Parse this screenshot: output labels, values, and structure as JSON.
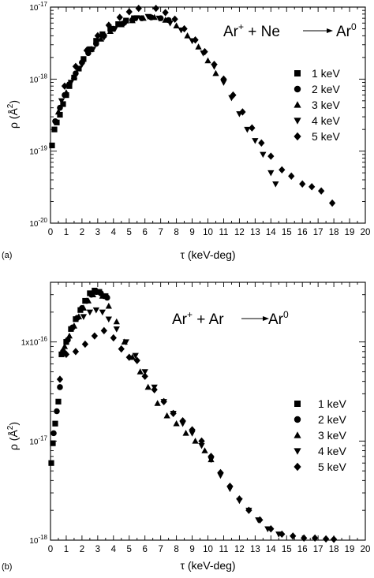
{
  "chart_data": [
    {
      "type": "scatter",
      "panel_label": "(a)",
      "reaction": {
        "left": "Ar",
        "sup1": "+",
        "mid": " + Ne",
        "product": "Ar",
        "sup2": "0"
      },
      "xlabel": "τ (keV-deg)",
      "ylabel": "ρ (Å",
      "ylabel_sup": "2",
      "ylabel_end": ")",
      "yscale": "log",
      "xlim": [
        0,
        20
      ],
      "ylim": [
        1e-20,
        1e-17
      ],
      "x_ticks": [
        "0",
        "1",
        "2",
        "3",
        "4",
        "5",
        "6",
        "7",
        "8",
        "9",
        "10",
        "11",
        "12",
        "13",
        "14",
        "15",
        "16",
        "17",
        "18",
        "19",
        "20"
      ],
      "y_ticks": [
        {
          "value": 1e-17,
          "mant": "10",
          "exp": "-17"
        },
        {
          "value": 1e-18,
          "mant": "10",
          "exp": "-18"
        },
        {
          "value": 1e-19,
          "mant": "10",
          "exp": "-19"
        },
        {
          "value": 1e-20,
          "mant": "10",
          "exp": "-20"
        }
      ],
      "legend_position": "right",
      "series": [
        {
          "name": "1 keV",
          "marker": "square",
          "points": [
            [
              0.1,
              1.2e-19
            ],
            [
              0.25,
              2e-19
            ],
            [
              0.4,
              2.5e-19
            ],
            [
              0.6,
              3.2e-19
            ],
            [
              0.8,
              4.5e-19
            ],
            [
              1.0,
              6e-19
            ],
            [
              1.2,
              8e-19
            ],
            [
              1.5,
              1.05e-18
            ],
            [
              1.8,
              1.4e-18
            ],
            [
              2.1,
              1.9e-18
            ],
            [
              2.5,
              2.6e-18
            ],
            [
              2.9,
              3.4e-18
            ],
            [
              3.3,
              4.2e-18
            ],
            [
              3.8,
              5e-18
            ],
            [
              4.3,
              5.8e-18
            ],
            [
              4.8,
              6.5e-18
            ],
            [
              5.3,
              7e-18
            ]
          ]
        },
        {
          "name": "2 keV",
          "marker": "circle",
          "points": [
            [
              0.3,
              2.6e-19
            ],
            [
              0.6,
              4e-19
            ],
            [
              0.9,
              6e-19
            ],
            [
              1.2,
              8.5e-19
            ],
            [
              1.6,
              1.2e-18
            ],
            [
              2.0,
              1.7e-18
            ],
            [
              2.4,
              2.3e-18
            ],
            [
              2.9,
              3.1e-18
            ],
            [
              3.4,
              4e-18
            ],
            [
              4.0,
              5e-18
            ],
            [
              4.6,
              5.9e-18
            ],
            [
              5.2,
              6.6e-18
            ],
            [
              5.8,
              7e-18
            ],
            [
              6.4,
              7.2e-18
            ],
            [
              7.0,
              7e-18
            ],
            [
              7.5,
              6.6e-18
            ]
          ]
        },
        {
          "name": "3 keV",
          "marker": "triangle",
          "points": [
            [
              0.5,
              3.5e-19
            ],
            [
              1.0,
              6.5e-19
            ],
            [
              1.5,
              1.1e-18
            ],
            [
              2.0,
              1.8e-18
            ],
            [
              2.6,
              2.6e-18
            ],
            [
              3.2,
              3.6e-18
            ],
            [
              3.8,
              4.6e-18
            ],
            [
              4.5,
              5.7e-18
            ],
            [
              5.2,
              6.5e-18
            ],
            [
              5.9,
              7e-18
            ],
            [
              6.6,
              7.2e-18
            ],
            [
              7.3,
              6.6e-18
            ],
            [
              8.0,
              5.5e-18
            ],
            [
              8.7,
              4e-18
            ],
            [
              9.4,
              2.8e-18
            ],
            [
              10.0,
              1.8e-18
            ],
            [
              10.5,
              1.2e-18
            ]
          ]
        },
        {
          "name": "4 keV",
          "marker": "triangle-down",
          "points": [
            [
              0.7,
              5e-19
            ],
            [
              1.3,
              9e-19
            ],
            [
              2.0,
              1.6e-18
            ],
            [
              2.7,
              2.6e-18
            ],
            [
              3.4,
              3.8e-18
            ],
            [
              4.1,
              5e-18
            ],
            [
              4.8,
              6.2e-18
            ],
            [
              5.5,
              7.1e-18
            ],
            [
              6.2,
              7.4e-18
            ],
            [
              6.9,
              7e-18
            ],
            [
              7.6,
              6e-18
            ],
            [
              8.3,
              4.8e-18
            ],
            [
              9.0,
              3.4e-18
            ],
            [
              9.7,
              2.3e-18
            ],
            [
              10.4,
              1.5e-18
            ],
            [
              11.0,
              9e-19
            ],
            [
              11.5,
              5.5e-19
            ],
            [
              12.0,
              3.3e-19
            ],
            [
              12.5,
              2e-19
            ],
            [
              13.0,
              1.4e-19
            ],
            [
              13.5,
              9e-20
            ],
            [
              14.0,
              5e-20
            ],
            [
              14.3,
              3.5e-20
            ]
          ]
        },
        {
          "name": "5 keV",
          "marker": "diamond",
          "points": [
            [
              0.9,
              8e-19
            ],
            [
              1.6,
              1.5e-18
            ],
            [
              2.3,
              2.5e-18
            ],
            [
              3.0,
              4e-18
            ],
            [
              3.7,
              5.6e-18
            ],
            [
              4.4,
              7.2e-18
            ],
            [
              5.0,
              8.6e-18
            ],
            [
              5.6,
              9.6e-18
            ],
            [
              6.1,
              1.03e-17
            ],
            [
              6.7,
              9.6e-18
            ],
            [
              7.3,
              8.4e-18
            ],
            [
              7.9,
              6.8e-18
            ],
            [
              8.5,
              5e-18
            ],
            [
              9.2,
              3.5e-18
            ],
            [
              9.8,
              2.4e-18
            ],
            [
              10.4,
              1.6e-18
            ],
            [
              11.0,
              1e-18
            ],
            [
              11.6,
              6e-19
            ],
            [
              12.2,
              3.5e-19
            ],
            [
              12.8,
              2.1e-19
            ],
            [
              13.4,
              1.3e-19
            ],
            [
              14.0,
              8.5e-20
            ],
            [
              14.7,
              5.5e-20
            ],
            [
              15.3,
              4.5e-20
            ],
            [
              16.0,
              3.5e-20
            ],
            [
              16.6,
              3.2e-20
            ],
            [
              17.2,
              2.8e-20
            ],
            [
              17.9,
              1.9e-20
            ]
          ]
        }
      ]
    },
    {
      "type": "scatter",
      "panel_label": "(b)",
      "reaction": {
        "left": "Ar",
        "sup1": "+",
        "mid": " + Ar",
        "product": "Ar",
        "sup2": "0"
      },
      "xlabel": "τ (keV-deg)",
      "ylabel": "ρ (Å",
      "ylabel_sup": "2",
      "ylabel_end": ")",
      "yscale": "log",
      "xlim": [
        0,
        20
      ],
      "ylim": [
        1e-18,
        4e-16
      ],
      "x_ticks": [
        "0",
        "1",
        "2",
        "3",
        "4",
        "5",
        "6",
        "7",
        "8",
        "9",
        "10",
        "11",
        "12",
        "13",
        "14",
        "15",
        "16",
        "17",
        "18",
        "19",
        "20"
      ],
      "y_ticks": [
        {
          "value": 1e-16,
          "mant": "1x10",
          "exp": "-16"
        },
        {
          "value": 1e-17,
          "mant": "10",
          "exp": "-17"
        },
        {
          "value": 1e-18,
          "mant": "10",
          "exp": "-18"
        }
      ],
      "legend_position": "bottom-right",
      "series": [
        {
          "name": "1 keV",
          "marker": "square",
          "points": [
            [
              0.05,
              6e-18
            ],
            [
              0.15,
              9.5e-18
            ],
            [
              0.3,
              1.5e-17
            ],
            [
              0.5,
              2.5e-17
            ],
            [
              0.7,
              7.5e-17
            ],
            [
              1.0,
              1e-16
            ],
            [
              1.3,
              1.35e-16
            ],
            [
              1.6,
              1.7e-16
            ],
            [
              1.9,
              2.1e-16
            ],
            [
              2.2,
              2.6e-16
            ],
            [
              2.5,
              3.1e-16
            ],
            [
              2.8,
              3.3e-16
            ],
            [
              3.1,
              3.2e-16
            ],
            [
              3.5,
              2.9e-16
            ]
          ]
        },
        {
          "name": "2 keV",
          "marker": "circle",
          "points": [
            [
              0.2,
              1.2e-17
            ],
            [
              0.4,
              2e-17
            ],
            [
              0.6,
              3.5e-17
            ],
            [
              0.8,
              8e-17
            ],
            [
              1.1,
              1.05e-16
            ],
            [
              1.4,
              1.4e-16
            ],
            [
              1.7,
              1.75e-16
            ],
            [
              2.0,
              2.2e-16
            ],
            [
              2.3,
              2.6e-16
            ],
            [
              2.6,
              3e-16
            ],
            [
              2.9,
              3.2e-16
            ],
            [
              3.2,
              3.1e-16
            ],
            [
              3.6,
              2.8e-16
            ]
          ]
        },
        {
          "name": "3 keV",
          "marker": "triangle",
          "points": [
            [
              0.9,
              9e-17
            ],
            [
              1.2,
              1.15e-16
            ],
            [
              1.5,
              1.45e-16
            ],
            [
              1.8,
              1.8e-16
            ],
            [
              2.1,
              2.2e-16
            ],
            [
              2.4,
              2.6e-16
            ],
            [
              2.7,
              3e-16
            ],
            [
              3.0,
              3.2e-16
            ],
            [
              3.3,
              2.9e-16
            ],
            [
              3.7,
              2.3e-16
            ],
            [
              4.2,
              1.6e-16
            ],
            [
              4.7,
              1e-16
            ],
            [
              5.2,
              7e-17
            ],
            [
              5.7,
              5e-17
            ],
            [
              6.2,
              3.5e-17
            ],
            [
              6.8,
              2.4e-17
            ],
            [
              7.4,
              1.8e-17
            ],
            [
              8.0,
              1.5e-17
            ],
            [
              8.6,
              1.2e-17
            ],
            [
              9.2,
              1e-17
            ],
            [
              9.8,
              8e-18
            ],
            [
              10.2,
              6.5e-18
            ]
          ]
        },
        {
          "name": "4 keV",
          "marker": "triangle-down",
          "points": [
            [
              2.1,
              1.8e-16
            ],
            [
              2.5,
              2e-16
            ],
            [
              2.9,
              2.1e-16
            ],
            [
              3.3,
              2e-16
            ],
            [
              3.7,
              1.7e-16
            ],
            [
              4.2,
              1.35e-16
            ],
            [
              4.8,
              1e-16
            ],
            [
              5.4,
              7.3e-17
            ],
            [
              6.0,
              5e-17
            ],
            [
              6.6,
              3.5e-17
            ],
            [
              7.2,
              2.5e-17
            ],
            [
              7.8,
              1.9e-17
            ],
            [
              8.4,
              1.5e-17
            ],
            [
              9.0,
              1.2e-17
            ],
            [
              9.6,
              9e-18
            ],
            [
              10.2,
              6.5e-18
            ],
            [
              10.8,
              4.5e-18
            ],
            [
              11.4,
              3.3e-18
            ],
            [
              12.0,
              2.5e-18
            ],
            [
              12.6,
              2e-18
            ],
            [
              13.2,
              1.6e-18
            ],
            [
              13.8,
              1.3e-18
            ],
            [
              14.5,
              1.15e-18
            ]
          ]
        },
        {
          "name": "5 keV",
          "marker": "diamond",
          "points": [
            [
              0.6,
              4.2e-17
            ],
            [
              1.0,
              7.5e-17
            ],
            [
              1.6,
              8e-17
            ],
            [
              2.2,
              9.5e-17
            ],
            [
              2.8,
              1.15e-16
            ],
            [
              3.4,
              1.3e-16
            ],
            [
              4.0,
              1.1e-16
            ],
            [
              4.5,
              8.5e-17
            ],
            [
              5.0,
              7e-17
            ],
            [
              5.5,
              6.5e-17
            ],
            [
              6.0,
              4.5e-17
            ],
            [
              6.6,
              3.3e-17
            ],
            [
              7.2,
              2.5e-17
            ],
            [
              7.8,
              1.9e-17
            ],
            [
              8.4,
              1.6e-17
            ],
            [
              9.0,
              1.3e-17
            ],
            [
              9.6,
              1e-17
            ],
            [
              10.2,
              7e-18
            ],
            [
              10.8,
              4.8e-18
            ],
            [
              11.4,
              3.5e-18
            ],
            [
              12.0,
              2.6e-18
            ],
            [
              12.6,
              2e-18
            ],
            [
              13.3,
              1.6e-18
            ],
            [
              14.0,
              1.3e-18
            ],
            [
              14.7,
              1.15e-18
            ],
            [
              15.4,
              1.1e-18
            ],
            [
              16.1,
              1.05e-18
            ],
            [
              16.8,
              1.05e-18
            ],
            [
              17.5,
              1.03e-18
            ],
            [
              18.0,
              1.02e-18
            ]
          ]
        }
      ]
    }
  ]
}
